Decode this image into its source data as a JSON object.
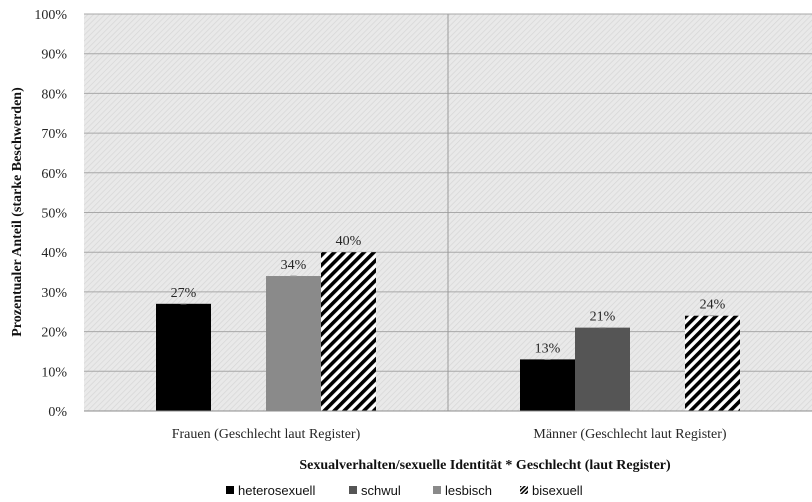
{
  "chart_data": {
    "type": "bar",
    "title": "",
    "xlabel": "Sexualverhalten/sexuelle Identität * Geschlecht (laut Register)",
    "ylabel": "Prozentualer Anteil (starke Beschwerden)",
    "ylim": [
      0,
      100
    ],
    "yticks": [
      "0%",
      "10%",
      "20%",
      "30%",
      "40%",
      "50%",
      "60%",
      "70%",
      "80%",
      "90%",
      "100%"
    ],
    "categories": [
      "Frauen (Geschlecht laut Register)",
      "Männer (Geschlecht laut Register)"
    ],
    "series": [
      {
        "name": "heterosexuell",
        "values": [
          27,
          13
        ],
        "labels": [
          "27%",
          "13%"
        ],
        "color": "#000000",
        "pattern": "solid"
      },
      {
        "name": "schwul",
        "values": [
          null,
          21
        ],
        "labels": [
          "",
          "21%"
        ],
        "color": "#555555",
        "pattern": "solid"
      },
      {
        "name": "lesbisch",
        "values": [
          34,
          null
        ],
        "labels": [
          "34%",
          ""
        ],
        "color": "#8a8a8a",
        "pattern": "solid"
      },
      {
        "name": "bisexuell",
        "values": [
          40,
          24
        ],
        "labels": [
          "40%",
          "24%"
        ],
        "color": "#000000",
        "pattern": "diagonal-stripes"
      }
    ],
    "grid": true,
    "legend": "bottom"
  }
}
